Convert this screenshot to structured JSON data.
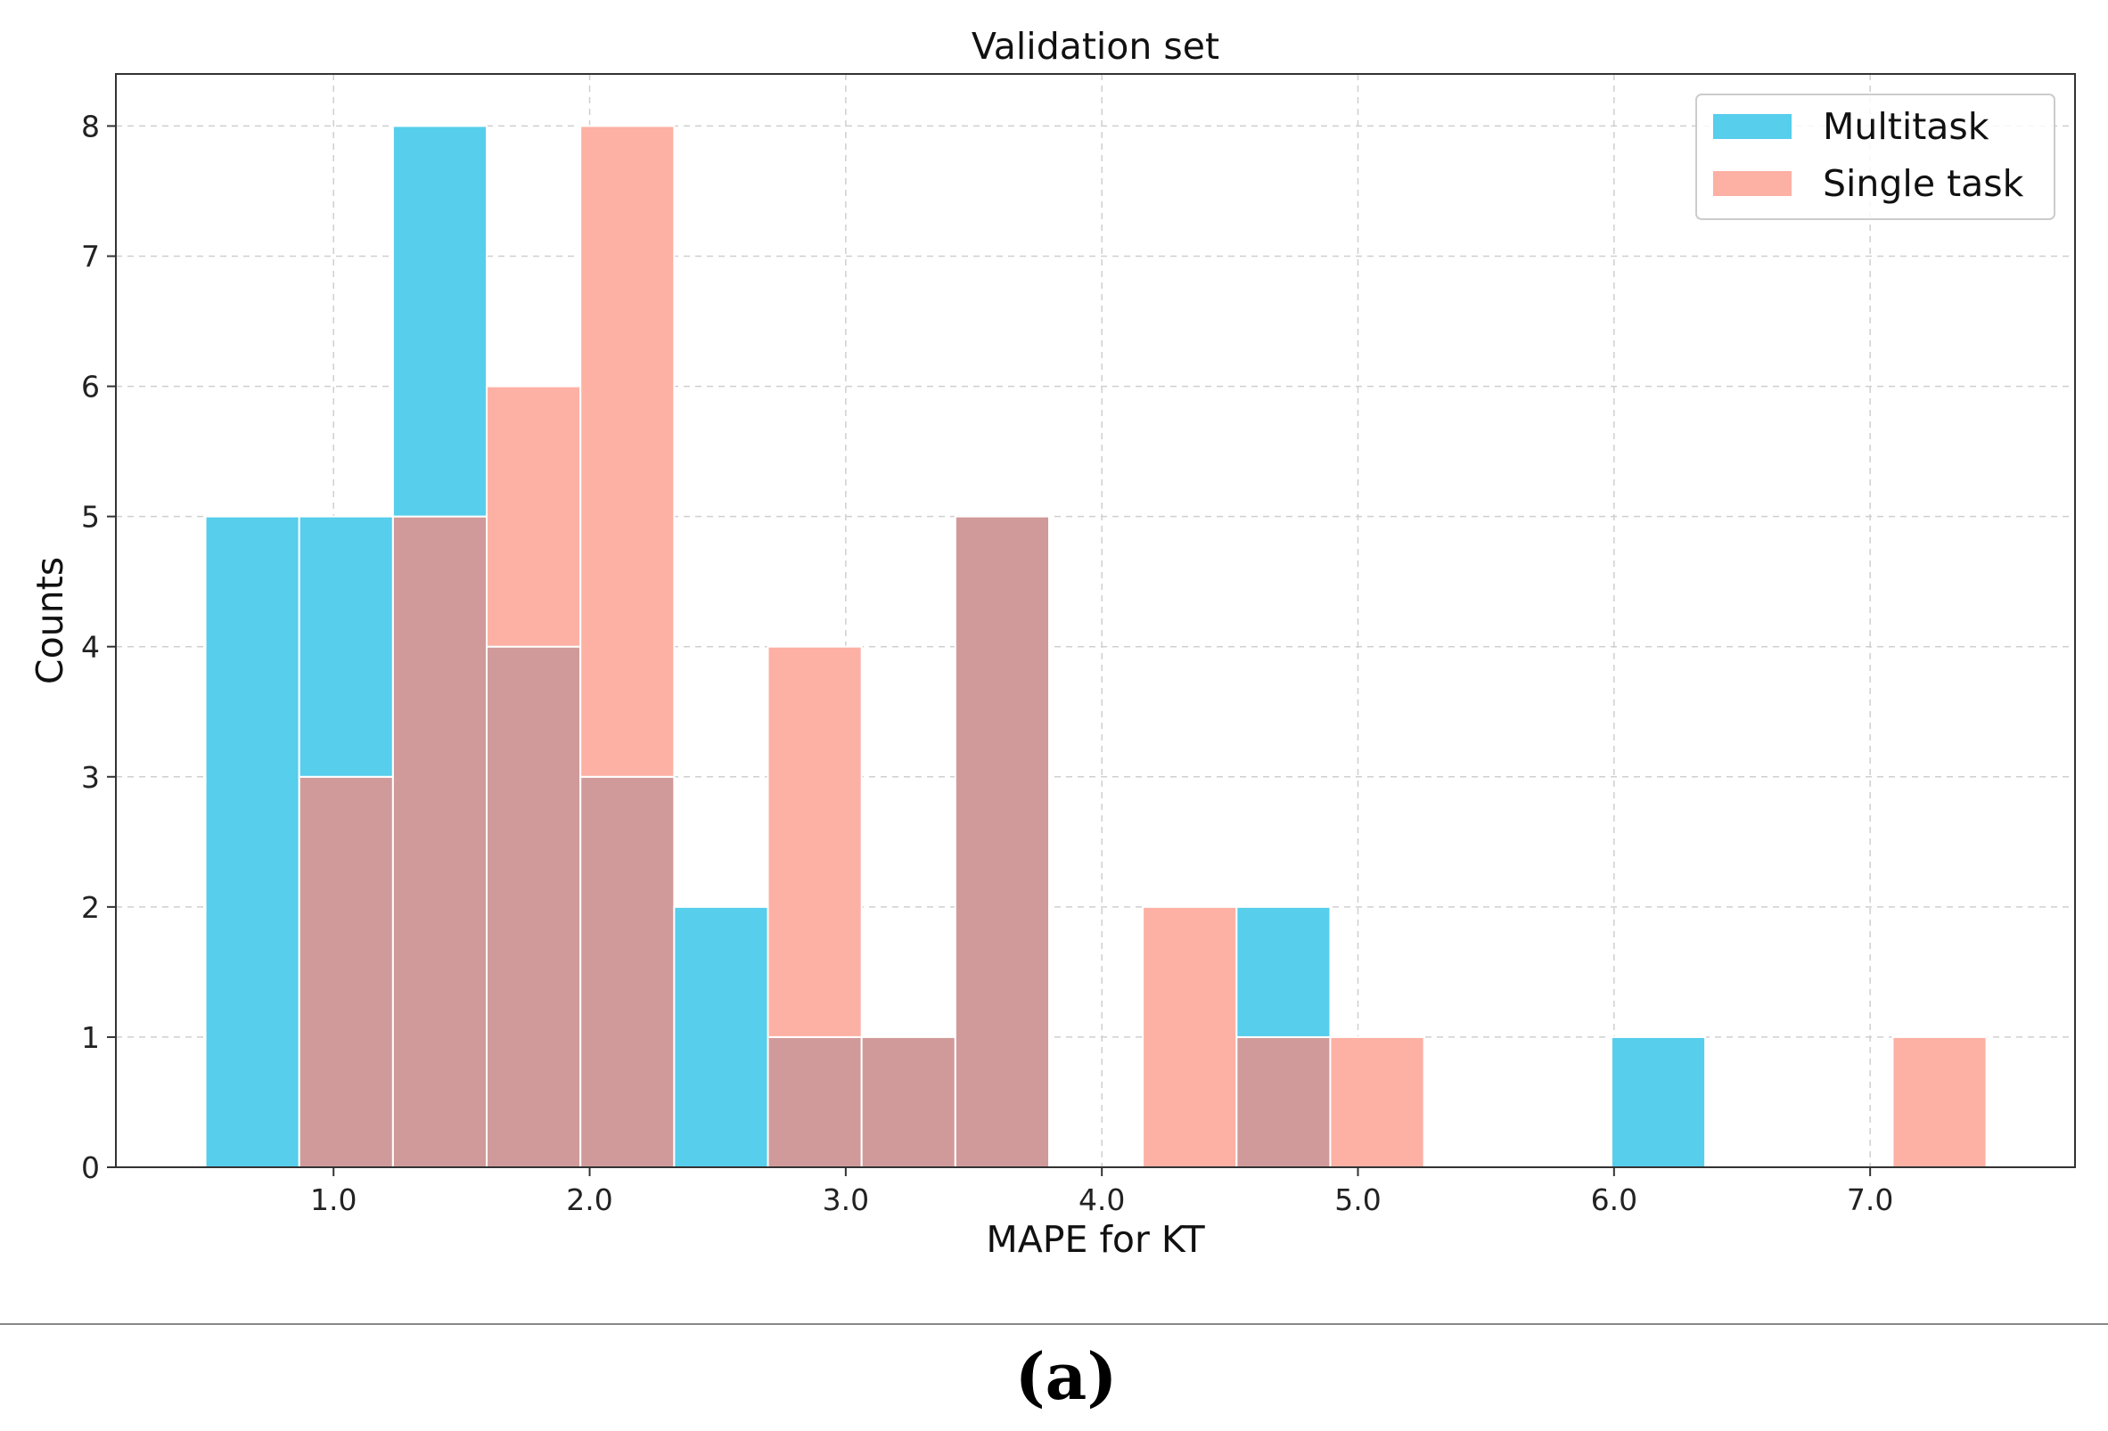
{
  "chart_data": {
    "type": "bar",
    "title": "Validation set",
    "xlabel": "MAPE for KT",
    "ylabel": "Counts",
    "xlim": [
      0.15,
      7.8
    ],
    "ylim": [
      0,
      8.4
    ],
    "xticks": [
      1.0,
      2.0,
      3.0,
      4.0,
      5.0,
      6.0,
      7.0
    ],
    "xtick_labels": [
      "1.0",
      "2.0",
      "3.0",
      "4.0",
      "5.0",
      "6.0",
      "7.0"
    ],
    "yticks": [
      0,
      1,
      2,
      3,
      4,
      5,
      6,
      7,
      8
    ],
    "ytick_labels": [
      "0",
      "1",
      "2",
      "3",
      "4",
      "5",
      "6",
      "7",
      "8"
    ],
    "grid": true,
    "legend_position": "top-right",
    "bin_edges": [
      0.5,
      0.866,
      1.232,
      1.598,
      1.964,
      2.33,
      2.696,
      3.062,
      3.428,
      3.794,
      4.16,
      4.526,
      4.892,
      5.258,
      5.624,
      5.99,
      6.356,
      6.722,
      7.088,
      7.454
    ],
    "series": [
      {
        "name": "Multitask",
        "color": "#56CEEC",
        "values": [
          5,
          5,
          8,
          4,
          3,
          2,
          1,
          1,
          5,
          0,
          0,
          2,
          0,
          0,
          0,
          1,
          0,
          0,
          0
        ]
      },
      {
        "name": "Single task",
        "color": "#FDB0A4",
        "values": [
          0,
          3,
          5,
          6,
          8,
          0,
          4,
          1,
          5,
          0,
          2,
          1,
          1,
          0,
          0,
          0,
          0,
          0,
          1
        ]
      }
    ],
    "overlap_color": "#D19A9A"
  },
  "caption": "(a)"
}
